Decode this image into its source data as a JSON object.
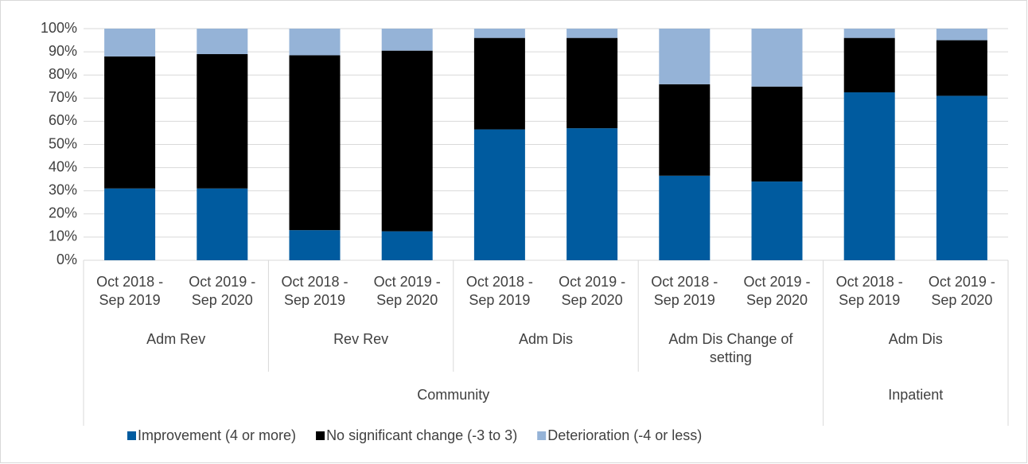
{
  "chart_data": {
    "type": "stacked_bar",
    "groups": [
      {
        "name": "Community",
        "groups": [
          {
            "name": "Adm Rev",
            "categories": [
              "Oct 2018 - Sep 2019",
              "Oct 2019 - Sep 2020"
            ]
          },
          {
            "name": "Rev Rev",
            "categories": [
              "Oct 2018 - Sep 2019",
              "Oct 2019 - Sep 2020"
            ]
          },
          {
            "name": "Adm Dis",
            "categories": [
              "Oct 2018 - Sep 2019",
              "Oct 2019 - Sep 2020"
            ]
          },
          {
            "name": "Adm Dis Change of setting",
            "categories": [
              "Oct 2018 - Sep 2019",
              "Oct 2019 - Sep 2020"
            ]
          }
        ]
      },
      {
        "name": "Inpatient",
        "groups": [
          {
            "name": "Adm Dis",
            "categories": [
              "Oct 2018 - Sep 2019",
              "Oct 2019 - Sep 2020"
            ]
          }
        ]
      }
    ],
    "series": [
      {
        "name": "Improvement (4 or more)",
        "color": "#005b9f",
        "values": [
          31,
          31,
          13,
          12.5,
          56.5,
          57,
          36.5,
          34,
          72.5,
          71
        ]
      },
      {
        "name": "No significant change (-3 to 3)",
        "color": "#000000",
        "values": [
          57,
          58,
          75.5,
          78,
          39.5,
          39,
          39.5,
          41,
          23.5,
          24
        ]
      },
      {
        "name": "Deterioration (-4 or less)",
        "color": "#95b3d7",
        "values": [
          12,
          11,
          11.5,
          9.5,
          4,
          4,
          24,
          25,
          4,
          5
        ]
      }
    ],
    "ylim": [
      0,
      100
    ],
    "yticks": [
      {
        "value": 0,
        "label": "0%"
      },
      {
        "value": 10,
        "label": "10%"
      },
      {
        "value": 20,
        "label": "20%"
      },
      {
        "value": 30,
        "label": "30%"
      },
      {
        "value": 40,
        "label": "40%"
      },
      {
        "value": 50,
        "label": "50%"
      },
      {
        "value": 60,
        "label": "60%"
      },
      {
        "value": 70,
        "label": "70%"
      },
      {
        "value": 80,
        "label": "80%"
      },
      {
        "value": 90,
        "label": "90%"
      },
      {
        "value": 100,
        "label": "100%"
      }
    ],
    "grid": true,
    "legend": "bottom"
  }
}
